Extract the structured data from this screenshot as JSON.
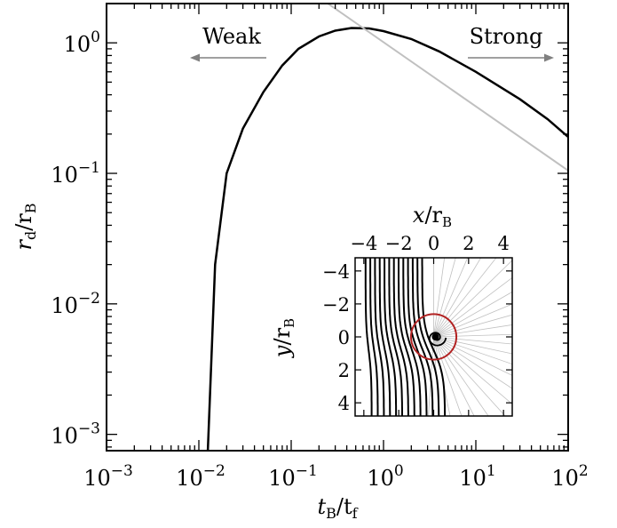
{
  "chart_data": [
    {
      "type": "line",
      "xscale": "log",
      "yscale": "log",
      "xlim": [
        0.001,
        100
      ],
      "ylim": [
        0.00075,
        2
      ],
      "xlabel": {
        "base": "t",
        "sub1": "B",
        "mid": "/t",
        "sub2": "f"
      },
      "ylabel": {
        "base": "r",
        "sub1": "d",
        "mid": "/r",
        "sub2": "B"
      },
      "xticks": [
        {
          "value": 0.001,
          "base": "10",
          "exp": "−3"
        },
        {
          "value": 0.01,
          "base": "10",
          "exp": "−2"
        },
        {
          "value": 0.1,
          "base": "10",
          "exp": "−1"
        },
        {
          "value": 1,
          "base": "10",
          "exp": "0"
        },
        {
          "value": 10,
          "base": "10",
          "exp": "1"
        },
        {
          "value": 100,
          "base": "10",
          "exp": "2"
        }
      ],
      "yticks": [
        {
          "value": 0.001,
          "base": "10",
          "exp": "−3"
        },
        {
          "value": 0.01,
          "base": "10",
          "exp": "−2"
        },
        {
          "value": 0.1,
          "base": "10",
          "exp": "−1"
        },
        {
          "value": 1,
          "base": "10",
          "exp": "0"
        }
      ],
      "series": [
        {
          "color": "#000000",
          "points": [
            [
              0.0125,
              0.00075
            ],
            [
              0.015,
              0.02
            ],
            [
              0.02,
              0.1
            ],
            [
              0.03,
              0.22
            ],
            [
              0.05,
              0.42
            ],
            [
              0.08,
              0.67
            ],
            [
              0.12,
              0.9
            ],
            [
              0.2,
              1.12
            ],
            [
              0.3,
              1.24
            ],
            [
              0.45,
              1.3
            ],
            [
              0.7,
              1.29
            ],
            [
              1,
              1.23
            ],
            [
              2,
              1.07
            ],
            [
              4,
              0.86
            ],
            [
              10,
              0.6
            ],
            [
              30,
              0.37
            ],
            [
              60,
              0.26
            ],
            [
              100,
              0.19
            ]
          ]
        },
        {
          "color": "#c0c0c0",
          "points": [
            [
              0.25,
              2.0
            ],
            [
              100,
              0.105
            ]
          ]
        }
      ],
      "annotations": [
        {
          "text": "Weak",
          "arrow": "left",
          "color": "#808080"
        },
        {
          "text": "Strong",
          "arrow": "right",
          "color": "#808080"
        }
      ]
    },
    {
      "type": "line",
      "xlim": [
        -4.5,
        4.5
      ],
      "ylim": [
        -4.8,
        4.8
      ],
      "y_inverted": true,
      "xlabel": {
        "base": "x",
        "mid": "/r",
        "sub": "B"
      },
      "ylabel": {
        "base": "y",
        "mid": "/r",
        "sub": "B"
      },
      "xticks": [
        {
          "value": -4,
          "label": "−4"
        },
        {
          "value": -2,
          "label": "−2"
        },
        {
          "value": 0,
          "label": "0"
        },
        {
          "value": 2,
          "label": "2"
        },
        {
          "value": 4,
          "label": "4"
        }
      ],
      "yticks": [
        {
          "value": -4,
          "label": "−4"
        },
        {
          "value": -2,
          "label": "−2"
        },
        {
          "value": 0,
          "label": "0"
        },
        {
          "value": 2,
          "label": "2"
        },
        {
          "value": 4,
          "label": "4"
        }
      ],
      "circle": {
        "x": 0,
        "y": 0,
        "r": 1.3,
        "color": "#b22222"
      },
      "colors": {
        "flow_lines": "#000000",
        "radial_lines": "#c0c0c0"
      }
    }
  ]
}
